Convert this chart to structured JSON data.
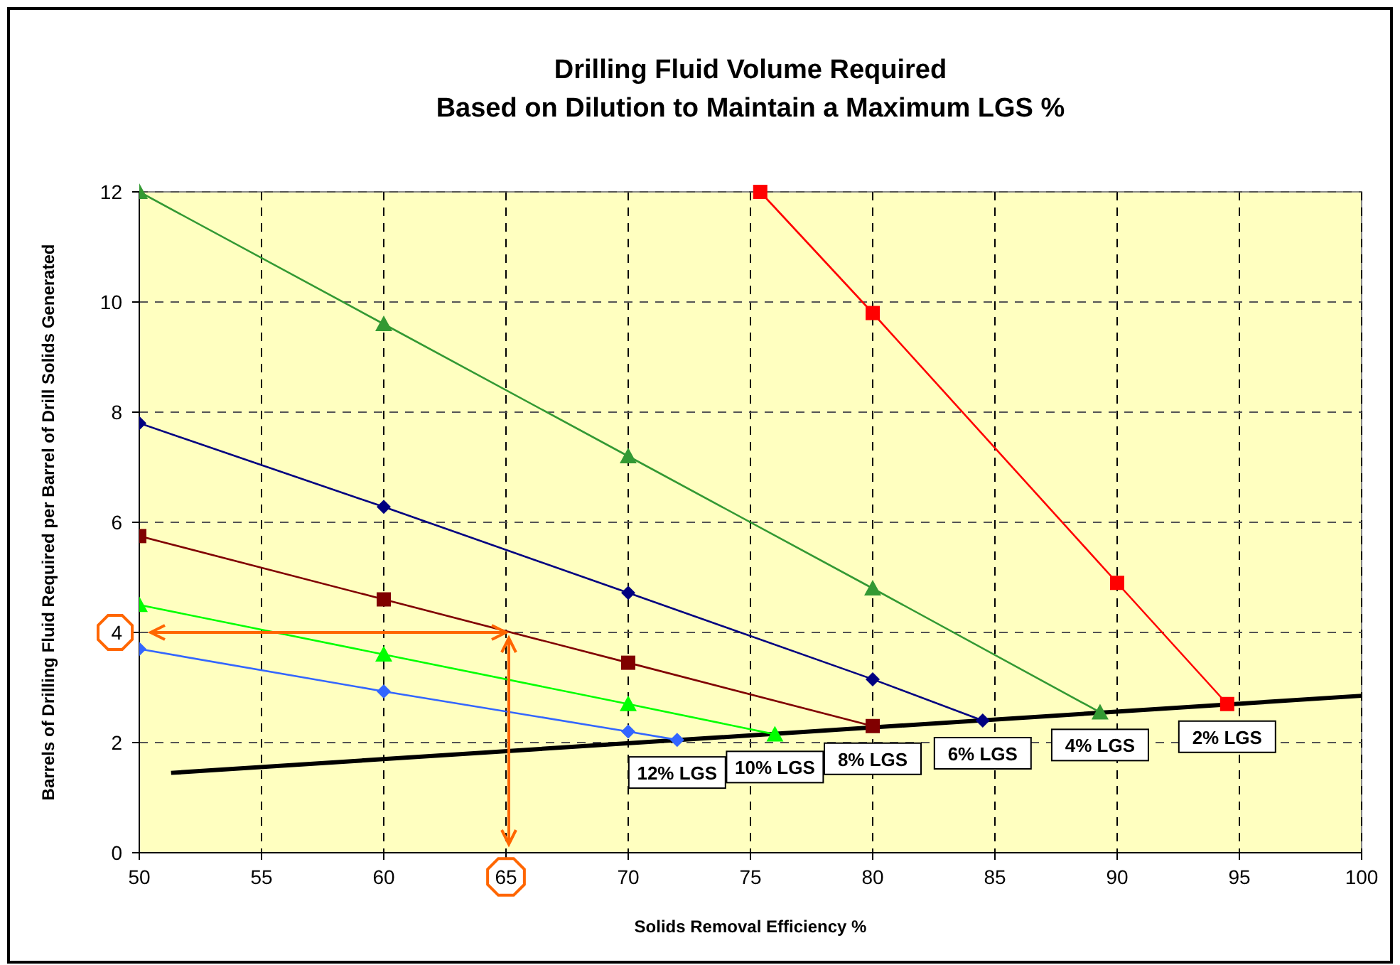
{
  "chart_data": {
    "type": "line",
    "title": "Drilling Fluid Volume Required",
    "subtitle": "Based on Dilution to Maintain a Maximum LGS %",
    "xlabel": "Solids Removal Efficiency %",
    "ylabel": "Barrels of Drilling Fluid Required per Barrel of Drill Solids Generated",
    "xlim": [
      50,
      100
    ],
    "xticks": [
      50,
      55,
      60,
      65,
      70,
      75,
      80,
      85,
      90,
      95,
      100
    ],
    "ylim": [
      0,
      12
    ],
    "yticks": [
      0,
      2,
      4,
      6,
      8,
      10,
      12
    ],
    "grid": true,
    "series": [
      {
        "name": "2% LGS",
        "color": "#ff0000",
        "marker": "square",
        "x": [
          75.4,
          80,
          90,
          94.5
        ],
        "values": [
          12,
          9.8,
          4.9,
          2.7
        ]
      },
      {
        "name": "4% LGS",
        "color": "#339933",
        "marker": "triangle",
        "x": [
          50,
          60,
          70,
          80,
          89.3
        ],
        "values": [
          12,
          9.6,
          7.2,
          4.8,
          2.55
        ]
      },
      {
        "name": "6% LGS",
        "color": "#000080",
        "marker": "diamond",
        "x": [
          50,
          60,
          70,
          80,
          84.5
        ],
        "values": [
          7.8,
          6.28,
          4.72,
          3.15,
          2.4
        ]
      },
      {
        "name": "8% LGS",
        "color": "#800000",
        "marker": "square",
        "x": [
          50,
          60,
          70,
          80
        ],
        "values": [
          5.75,
          4.6,
          3.45,
          2.3
        ]
      },
      {
        "name": "10% LGS",
        "color": "#00ff00",
        "marker": "triangle",
        "x": [
          50,
          60,
          70,
          76
        ],
        "values": [
          4.5,
          3.6,
          2.7,
          2.15
        ]
      },
      {
        "name": "12% LGS",
        "color": "#3366ff",
        "marker": "diamond",
        "x": [
          50,
          60,
          70,
          72
        ],
        "values": [
          3.7,
          2.93,
          2.2,
          2.05
        ]
      },
      {
        "color": "#000000",
        "marker": "none",
        "x": [
          51.3,
          100
        ],
        "values": [
          1.45,
          2.85
        ]
      }
    ]
  }
}
